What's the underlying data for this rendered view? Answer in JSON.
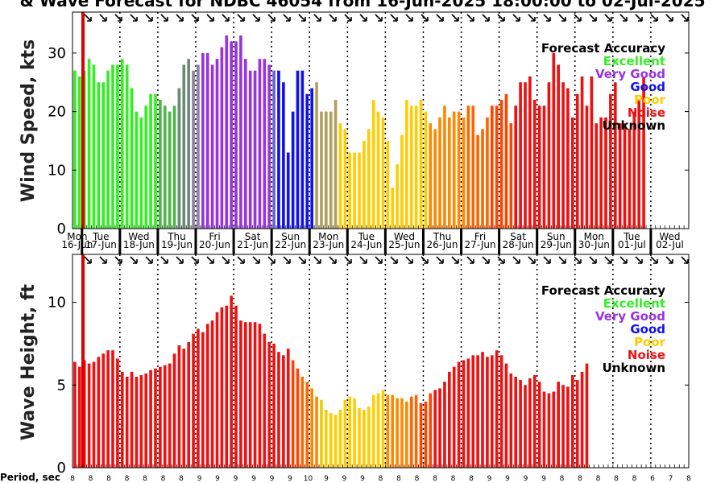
{
  "title": "& Wave Forecast for NDBC 46054 from 16-Jun-2025 18:00:00 to 02-Jul-2025",
  "colors": {
    "Excellent": "#33ee22",
    "Very Good": "#9933dd",
    "Good": "#1111ee",
    "Poor": "#ffcc00",
    "Noise": "#ee1111",
    "Unknown": "#000000",
    "trans1": "#4fb44a",
    "trans2": "#6a8a75",
    "trans3": "#8f82a0",
    "trans4": "#6666cc",
    "trans5": "#b0a060",
    "orange": "#ff8800",
    "orange2": "#ff6600",
    "orange3": "#ff4400",
    "yellow": "#eecc00",
    "cursor": "#dd0000"
  },
  "days": [
    {
      "dow": "Mon",
      "date": "16-Jun"
    },
    {
      "dow": "Tue",
      "date": "17-Jun"
    },
    {
      "dow": "Wed",
      "date": "18-Jun"
    },
    {
      "dow": "Thu",
      "date": "19-Jun"
    },
    {
      "dow": "Fri",
      "date": "20-Jun"
    },
    {
      "dow": "Sat",
      "date": "21-Jun"
    },
    {
      "dow": "Sun",
      "date": "22-Jun"
    },
    {
      "dow": "Mon",
      "date": "23-Jun"
    },
    {
      "dow": "Tue",
      "date": "24-Jun"
    },
    {
      "dow": "Wed",
      "date": "25-Jun"
    },
    {
      "dow": "Thu",
      "date": "26-Jun"
    },
    {
      "dow": "Fri",
      "date": "27-Jun"
    },
    {
      "dow": "Sat",
      "date": "28-Jun"
    },
    {
      "dow": "Sun",
      "date": "29-Jun"
    },
    {
      "dow": "Mon",
      "date": "30-Jun"
    },
    {
      "dow": "Tue",
      "date": "01-Jul"
    },
    {
      "dow": "Wed",
      "date": "02-Jul"
    }
  ],
  "legend": {
    "title": "Forecast Accuracy",
    "items": [
      "Excellent",
      "Very Good",
      "Good",
      "Poor",
      "Noise",
      "Unknown"
    ]
  },
  "period_label": "Period, sec",
  "periods": [
    "8",
    "8",
    "8",
    "8",
    "8",
    "8",
    "8",
    "9",
    "9",
    "9",
    "9",
    "9",
    "9",
    "10",
    "9",
    "9",
    "9",
    "8",
    "8",
    "8",
    "8",
    "8",
    "8",
    "9",
    "9",
    "9",
    "9",
    "8",
    "8",
    "8",
    "8",
    "8",
    "6",
    "7",
    "8"
  ],
  "chart_data": [
    {
      "type": "bar",
      "ylabel": "Wind Speed, kts",
      "ylim": [
        0,
        37
      ],
      "yticks": [
        0,
        10,
        20,
        30
      ],
      "x_start": "2025-06-16 18:00",
      "x_step_hours": 3,
      "values": [
        27,
        26,
        27,
        29,
        28,
        25,
        25,
        27,
        28,
        28,
        29,
        28,
        24,
        20,
        19,
        21,
        23,
        23,
        22,
        21,
        20,
        21,
        24,
        28,
        29,
        27,
        28,
        30,
        30,
        28,
        29,
        31,
        33,
        32,
        32,
        33,
        29,
        27,
        27,
        29,
        29,
        28,
        27,
        27,
        25,
        13,
        20,
        27,
        27,
        23,
        24,
        25,
        20,
        20,
        20,
        22,
        18,
        17,
        13,
        13,
        13,
        15,
        17,
        22,
        20,
        19,
        15,
        7,
        11,
        16,
        22,
        21,
        21,
        22,
        20,
        18,
        17,
        19,
        21,
        19,
        20,
        20,
        19,
        21,
        21,
        16,
        17,
        19,
        21,
        21,
        22,
        23,
        18,
        21,
        25,
        25,
        26,
        22,
        21,
        21,
        25,
        30,
        28,
        25,
        24,
        19,
        23,
        26,
        21,
        26,
        18,
        19,
        19,
        23,
        25,
        18,
        18,
        17,
        20,
        22,
        26
      ],
      "colors": [
        "Excellent",
        "Excellent",
        "Excellent",
        "Excellent",
        "Excellent",
        "Excellent",
        "Excellent",
        "Excellent",
        "Excellent",
        "Excellent",
        "Excellent",
        "Excellent",
        "Excellent",
        "Excellent",
        "Excellent",
        "Excellent",
        "Excellent",
        "Excellent",
        "trans1",
        "trans1",
        "trans1",
        "trans1",
        "trans2",
        "trans2",
        "trans2",
        "trans3",
        "trans3",
        "Very Good",
        "Very Good",
        "Very Good",
        "Very Good",
        "Very Good",
        "Very Good",
        "Very Good",
        "Very Good",
        "Very Good",
        "Very Good",
        "Very Good",
        "Very Good",
        "Very Good",
        "Very Good",
        "Very Good",
        "trans4",
        "Good",
        "Good",
        "Good",
        "Good",
        "Good",
        "Good",
        "Good",
        "Good",
        "trans5",
        "trans5",
        "trans5",
        "trans5",
        "trans5",
        "Poor",
        "Poor",
        "Poor",
        "Poor",
        "Poor",
        "Poor",
        "Poor",
        "Poor",
        "Poor",
        "Poor",
        "Poor",
        "Poor",
        "Poor",
        "Poor",
        "Poor",
        "Poor",
        "Poor",
        "Poor",
        "Poor",
        "orange",
        "orange",
        "orange",
        "orange",
        "orange",
        "orange",
        "orange",
        "orange",
        "orange2",
        "orange2",
        "orange2",
        "orange2",
        "orange2",
        "orange3",
        "orange3",
        "orange3",
        "orange3",
        "orange3",
        "Noise",
        "Noise",
        "Noise",
        "Noise",
        "Noise",
        "Noise",
        "Noise",
        "Noise",
        "Noise",
        "Noise",
        "Noise",
        "Noise",
        "Noise",
        "Noise",
        "Noise",
        "Noise",
        "Noise",
        "Noise",
        "Noise",
        "Noise",
        "Noise",
        "Noise",
        "Noise",
        "Noise",
        "Noise",
        "Noise"
      ]
    },
    {
      "type": "bar",
      "ylabel": "Wave Height, ft",
      "ylim": [
        0,
        12.9
      ],
      "yticks": [
        0,
        5,
        10
      ],
      "x_start": "2025-06-16 18:00",
      "x_step_hours": 3,
      "values": [
        6.4,
        6.1,
        6.5,
        6.3,
        6.4,
        6.7,
        6.9,
        7.1,
        7.1,
        6.6,
        5.8,
        5.5,
        5.8,
        5.5,
        5.6,
        5.7,
        5.9,
        6.0,
        6.1,
        6.2,
        6.3,
        6.9,
        7.4,
        7.2,
        7.6,
        8.1,
        8.4,
        8.2,
        8.7,
        8.9,
        9.4,
        9.7,
        9.8,
        10.4,
        9.8,
        8.9,
        8.8,
        8.8,
        8.8,
        8.7,
        8.1,
        7.6,
        7.5,
        7.0,
        6.8,
        7.2,
        6.5,
        6.0,
        5.5,
        5.2,
        4.8,
        4.3,
        4.1,
        3.5,
        3.3,
        3.2,
        3.5,
        4.1,
        4.3,
        4.2,
        3.6,
        3.5,
        3.7,
        4.4,
        4.5,
        4.7,
        4.4,
        4.4,
        4.2,
        4.2,
        4.0,
        4.3,
        4.4,
        3.9,
        4.0,
        4.5,
        4.7,
        4.8,
        5.2,
        5.8,
        6.1,
        6.4,
        6.5,
        6.6,
        6.8,
        6.8,
        7.0,
        6.7,
        6.8,
        7.1,
        6.8,
        6.3,
        5.7,
        5.5,
        5.3,
        5.0,
        5.4,
        5.6,
        5.2,
        4.6,
        4.5,
        4.6,
        5.2,
        5.0,
        4.9,
        5.6,
        5.3,
        5.8,
        6.3
      ],
      "colors": [
        "Noise",
        "Noise",
        "Noise",
        "Noise",
        "Noise",
        "Noise",
        "Noise",
        "Noise",
        "Noise",
        "Noise",
        "Noise",
        "Noise",
        "Noise",
        "Noise",
        "Noise",
        "Noise",
        "Noise",
        "Noise",
        "Noise",
        "Noise",
        "Noise",
        "Noise",
        "Noise",
        "Noise",
        "Noise",
        "Noise",
        "Noise",
        "Noise",
        "Noise",
        "Noise",
        "Noise",
        "Noise",
        "Noise",
        "Noise",
        "Noise",
        "Noise",
        "Noise",
        "Noise",
        "Noise",
        "Noise",
        "Noise",
        "Noise",
        "Noise",
        "Noise",
        "Noise",
        "Noise",
        "orange3",
        "orange3",
        "orange2",
        "orange2",
        "orange",
        "orange",
        "yellow",
        "Poor",
        "Poor",
        "Poor",
        "Poor",
        "Poor",
        "Poor",
        "Poor",
        "Poor",
        "Poor",
        "Poor",
        "Poor",
        "Poor",
        "Poor",
        "orange",
        "orange",
        "orange",
        "orange",
        "orange",
        "orange2",
        "orange2",
        "orange3",
        "orange3",
        "orange3",
        "Noise",
        "Noise",
        "Noise",
        "Noise",
        "Noise",
        "Noise",
        "Noise",
        "Noise",
        "Noise",
        "Noise",
        "Noise",
        "Noise",
        "Noise",
        "Noise",
        "Noise",
        "Noise",
        "Noise",
        "Noise",
        "Noise",
        "Noise",
        "Noise",
        "Noise",
        "Noise",
        "Noise",
        "Noise",
        "Noise",
        "Noise",
        "Noise",
        "Noise",
        "Noise",
        "Noise",
        "Noise",
        "Noise"
      ]
    }
  ]
}
